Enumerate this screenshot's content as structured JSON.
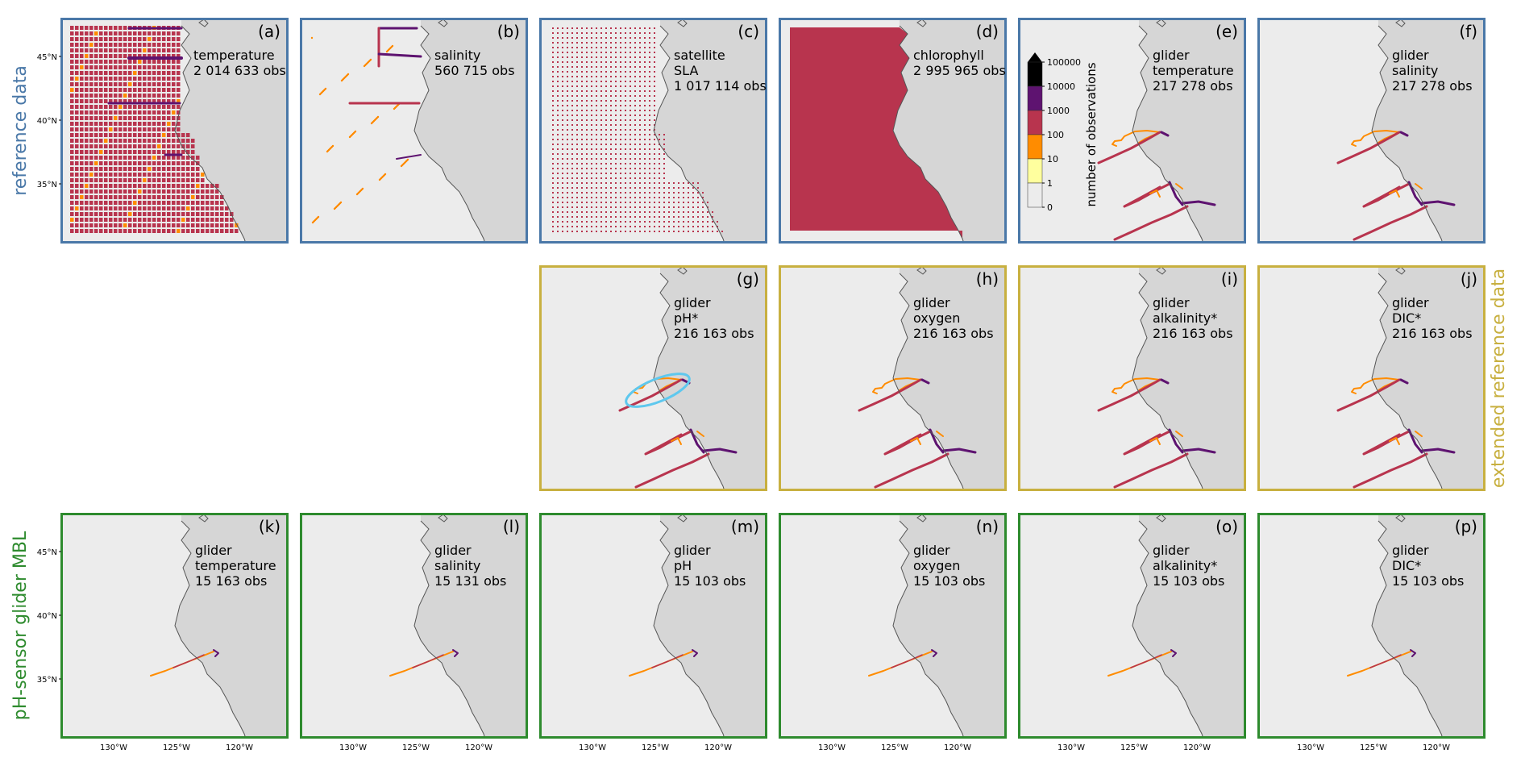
{
  "colors": {
    "reference": "#4a78a8",
    "extended": "#c8b040",
    "mbl": "#2e8b2e",
    "ocean": "#ececec",
    "land": "#d6d6d6",
    "coast": "#555555",
    "highlight": "#5ec8ee",
    "bins": [
      "#ececec",
      "#ffff9e",
      "#ff8c00",
      "#b8344e",
      "#5e1370",
      "#000000"
    ]
  },
  "rows": [
    {
      "label": "reference data",
      "color_key": "reference"
    },
    {
      "label": "extended reference data",
      "color_key": "extended"
    },
    {
      "label": "pH-sensor glider MBL",
      "color_key": "mbl"
    }
  ],
  "axis": {
    "lat_ticks": [
      "45°N",
      "40°N",
      "35°N"
    ],
    "lon_ticks": [
      "130°W",
      "125°W",
      "120°W"
    ]
  },
  "colorbar": {
    "label": "number of observations",
    "ticks": [
      "0",
      "1",
      "10",
      "100",
      "1000",
      "10000",
      "100000"
    ]
  },
  "panels": [
    {
      "id": "(a)",
      "row": 0,
      "col": 0,
      "kind": "grid",
      "lines": [
        "temperature",
        "2 014 633 obs"
      ]
    },
    {
      "id": "(b)",
      "row": 0,
      "col": 1,
      "kind": "salinity",
      "lines": [
        "salinity",
        "560 715 obs"
      ]
    },
    {
      "id": "(c)",
      "row": 0,
      "col": 2,
      "kind": "sla",
      "lines": [
        "satellite",
        "SLA",
        "1 017 114 obs"
      ]
    },
    {
      "id": "(d)",
      "row": 0,
      "col": 3,
      "kind": "chl",
      "lines": [
        "chlorophyll",
        "2 995 965 obs"
      ]
    },
    {
      "id": "(e)",
      "row": 0,
      "col": 4,
      "kind": "glider",
      "lines": [
        "glider",
        "temperature",
        "217 278 obs"
      ]
    },
    {
      "id": "(f)",
      "row": 0,
      "col": 5,
      "kind": "glider",
      "lines": [
        "glider",
        "salinity",
        "217 278 obs"
      ]
    },
    {
      "id": "(g)",
      "row": 1,
      "col": 2,
      "kind": "glider",
      "highlight": true,
      "lines": [
        "glider",
        "pH*",
        "216 163 obs"
      ]
    },
    {
      "id": "(h)",
      "row": 1,
      "col": 3,
      "kind": "glider",
      "lines": [
        "glider",
        "oxygen",
        "216 163 obs"
      ]
    },
    {
      "id": "(i)",
      "row": 1,
      "col": 4,
      "kind": "glider",
      "lines": [
        "glider",
        "alkalinity*",
        "216 163 obs"
      ]
    },
    {
      "id": "(j)",
      "row": 1,
      "col": 5,
      "kind": "glider",
      "lines": [
        "glider",
        "DIC*",
        "216 163 obs"
      ]
    },
    {
      "id": "(k)",
      "row": 2,
      "col": 0,
      "kind": "mbl",
      "lines": [
        "glider",
        "temperature",
        "15 163 obs"
      ]
    },
    {
      "id": "(l)",
      "row": 2,
      "col": 1,
      "kind": "mbl",
      "lines": [
        "glider",
        "salinity",
        "15 131 obs"
      ]
    },
    {
      "id": "(m)",
      "row": 2,
      "col": 2,
      "kind": "mbl",
      "lines": [
        "glider",
        "pH",
        "15 103 obs"
      ]
    },
    {
      "id": "(n)",
      "row": 2,
      "col": 3,
      "kind": "mbl",
      "lines": [
        "glider",
        "oxygen",
        "15 103 obs"
      ]
    },
    {
      "id": "(o)",
      "row": 2,
      "col": 4,
      "kind": "mbl",
      "lines": [
        "glider",
        "alkalinity*",
        "15 103 obs"
      ]
    },
    {
      "id": "(p)",
      "row": 2,
      "col": 5,
      "kind": "mbl",
      "lines": [
        "glider",
        "DIC*",
        "15 103 obs"
      ]
    }
  ]
}
